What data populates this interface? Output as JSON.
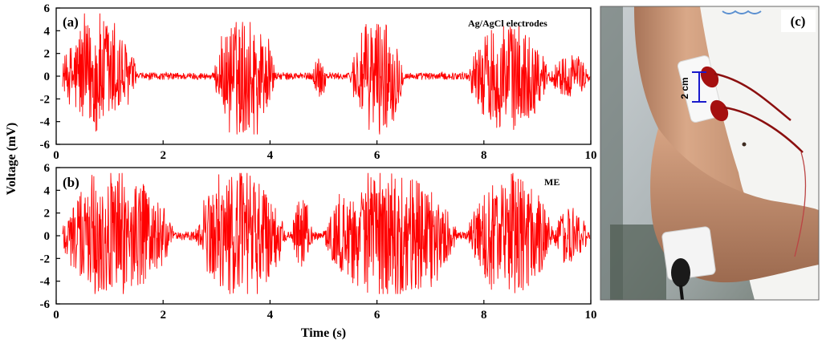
{
  "colors": {
    "signal": "#ff0000",
    "scale_bar": "#1a1acc"
  },
  "ylabel": "Voltage (mV)",
  "xlabel": "Time (s)",
  "photo": {
    "tag": "(c)",
    "scale_label": "2 cm"
  },
  "chart_data": [
    {
      "type": "line",
      "panel_tag": "(a)",
      "annotation": "Ag/AgCl electrodes",
      "xlim": [
        0,
        10
      ],
      "ylim": [
        -6,
        6
      ],
      "xticks": [
        0,
        2,
        4,
        6,
        8,
        10
      ],
      "yticks": [
        -6,
        -4,
        -2,
        0,
        2,
        4,
        6
      ],
      "bursts": [
        {
          "start": 0.1,
          "end": 1.5,
          "peak": 5.0
        },
        {
          "start": 2.95,
          "end": 4.1,
          "peak": 5.2
        },
        {
          "start": 4.8,
          "end": 5.05,
          "peak": 2.0
        },
        {
          "start": 5.5,
          "end": 6.5,
          "peak": 5.2
        },
        {
          "start": 7.7,
          "end": 9.2,
          "peak": 4.8
        },
        {
          "start": 9.2,
          "end": 10.0,
          "peak": 1.8
        }
      ],
      "baseline_noise": 0.3
    },
    {
      "type": "line",
      "panel_tag": "(b)",
      "annotation": "ME",
      "xlim": [
        0,
        10
      ],
      "ylim": [
        -6,
        6
      ],
      "xticks": [
        0,
        2,
        4,
        6,
        8,
        10
      ],
      "yticks": [
        -6,
        -4,
        -2,
        0,
        2,
        4,
        6
      ],
      "bursts": [
        {
          "start": 0.05,
          "end": 2.2,
          "peak": 5.5
        },
        {
          "start": 2.6,
          "end": 4.3,
          "peak": 5.5
        },
        {
          "start": 4.4,
          "end": 4.8,
          "peak": 3.5
        },
        {
          "start": 5.0,
          "end": 7.5,
          "peak": 5.5
        },
        {
          "start": 7.7,
          "end": 9.3,
          "peak": 5.2
        },
        {
          "start": 9.3,
          "end": 9.95,
          "peak": 2.5
        }
      ],
      "baseline_noise": 0.35
    }
  ]
}
